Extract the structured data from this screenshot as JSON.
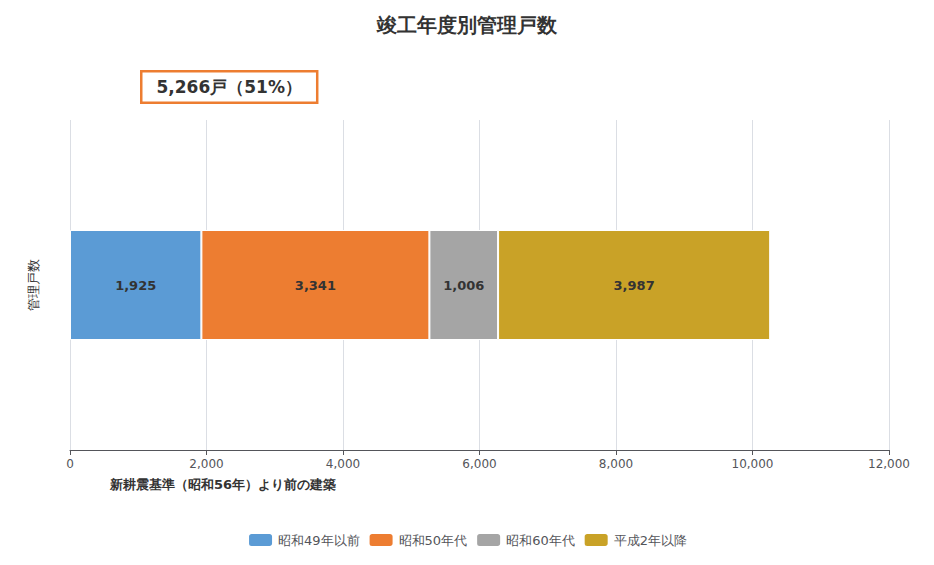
{
  "chart_data": {
    "type": "bar",
    "orientation": "horizontal",
    "stacked": true,
    "title": "竣工年度別管理戸数",
    "ylabel": "管理戸数",
    "categories": [
      null
    ],
    "series": [
      {
        "name": "昭和49年以前",
        "color": "#5B9BD5",
        "values": [
          1925
        ],
        "value_labels": [
          "1,925"
        ]
      },
      {
        "name": "昭和50年代",
        "color": "#ED7D31",
        "values": [
          3341
        ],
        "value_labels": [
          "3,341"
        ]
      },
      {
        "name": "昭和60年代",
        "color": "#A5A5A5",
        "values": [
          1006
        ],
        "value_labels": [
          "1,006"
        ]
      },
      {
        "name": "平成2年以降",
        "color": "#C9A227",
        "values": [
          3987
        ],
        "value_labels": [
          "3,987"
        ]
      }
    ],
    "data_labels": true,
    "xlim": [
      0,
      12000
    ],
    "xticks": [
      0,
      {
        "value": 2000,
        "label": "2,000"
      },
      {
        "value": 4000,
        "label": "4,000"
      },
      {
        "value": 6000,
        "label": "6,000"
      },
      {
        "value": 8000,
        "label": "8,000"
      },
      {
        "value": 10000,
        "label": "10,000"
      },
      {
        "value": 12000,
        "label": "12,000"
      }
    ],
    "grid": true,
    "legend": "bottom",
    "tick_labels": "x",
    "annotations": [
      "5,266戸（51%）",
      "新耕震基準（昭和56年）より前の建築"
    ]
  }
}
